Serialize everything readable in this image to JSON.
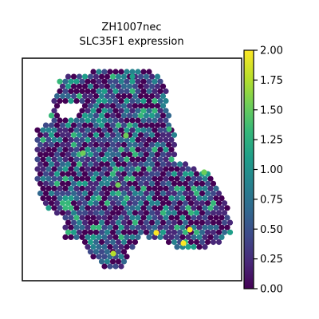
{
  "chart_data": {
    "type": "scatter",
    "subtype": "spatial-hexbin",
    "title_line1": "ZH1007nec",
    "title_line2": "SLC35F1 expression",
    "xlabel": "",
    "ylabel": "",
    "colorbar": {
      "colormap": "viridis",
      "range": [
        0.0,
        2.0
      ],
      "ticks": [
        "0.00",
        "0.25",
        "0.50",
        "0.75",
        "1.00",
        "1.25",
        "1.50",
        "1.75",
        "2.00"
      ],
      "tick_values": [
        0.0,
        0.25,
        0.5,
        0.75,
        1.0,
        1.25,
        1.5,
        1.75,
        2.0
      ]
    },
    "highlights": [
      {
        "spot": [
          158,
          170
        ],
        "value": 1.5
      },
      {
        "spot": [
          104,
          192
        ],
        "value": 1.45
      },
      {
        "spot": [
          148,
          232
        ],
        "value": 1.6
      },
      {
        "spot": [
          212,
          162
        ],
        "value": 1.4
      },
      {
        "spot": [
          196,
          292
        ],
        "value": 1.95
      },
      {
        "spot": [
          238,
          288
        ],
        "value": 2.0
      },
      {
        "spot": [
          230,
          305
        ],
        "value": 1.9
      },
      {
        "spot": [
          256,
          216
        ],
        "value": 1.55
      },
      {
        "spot": [
          142,
          318
        ],
        "value": 1.7
      },
      {
        "spot": [
          166,
          96
        ],
        "value": 1.2
      }
    ],
    "grid": false,
    "legend": "colorbar-right"
  },
  "colors": {
    "viridis": [
      "#440154",
      "#482878",
      "#3e4989",
      "#31688e",
      "#26828e",
      "#1f9e89",
      "#35b779",
      "#6ece58",
      "#b5de2b",
      "#fde725"
    ]
  }
}
